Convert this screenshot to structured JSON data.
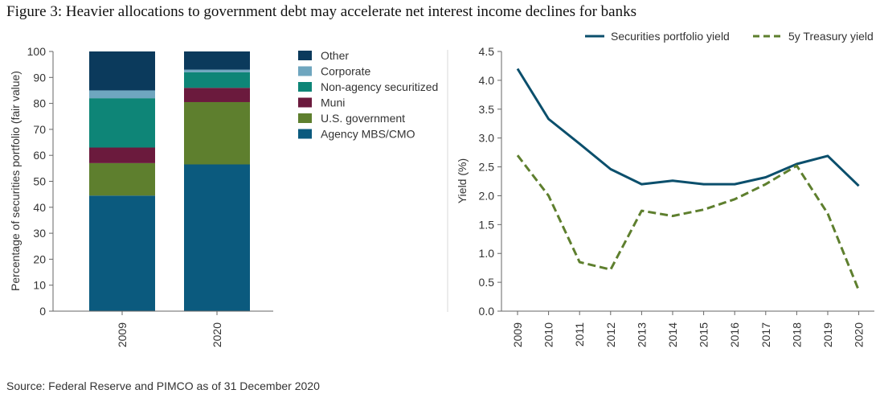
{
  "figure": {
    "title": "Figure 3: Heavier allocations to government debt may accelerate net interest income declines for banks",
    "source": "Source: Federal Reserve and PIMCO as of 31 December 2020"
  },
  "chart_data": [
    {
      "type": "bar",
      "stacked": true,
      "categories": [
        "2009",
        "2020"
      ],
      "ylabel": "Percentage of securities portfolio (fair value)",
      "ylim": [
        0,
        100
      ],
      "yticks": [
        0,
        10,
        20,
        30,
        40,
        50,
        60,
        70,
        80,
        90,
        100
      ],
      "legend_placement": "right",
      "series": [
        {
          "name": "Agency MBS/CMO",
          "color": "#0b5a7e",
          "values": [
            44.5,
            56.5
          ]
        },
        {
          "name": "U.S. government",
          "color": "#5e7f2e",
          "values": [
            12.5,
            24
          ]
        },
        {
          "name": "Muni",
          "color": "#6b1a3d",
          "values": [
            6,
            5.5
          ]
        },
        {
          "name": "Non-agency securitized",
          "color": "#0e8577",
          "values": [
            19,
            6
          ]
        },
        {
          "name": "Corporate",
          "color": "#6fa6bf",
          "values": [
            3,
            1
          ]
        },
        {
          "name": "Other",
          "color": "#0b3a5c",
          "values": [
            15,
            7
          ]
        }
      ]
    },
    {
      "type": "line",
      "x": [
        "2009",
        "2010",
        "2011",
        "2012",
        "2013",
        "2014",
        "2015",
        "2016",
        "2017",
        "2018",
        "2019",
        "2020"
      ],
      "ylabel": "Yield (%)",
      "ylim": [
        0,
        4.5
      ],
      "yticks": [
        "0.0",
        "0.5",
        "1.0",
        "1.5",
        "2.0",
        "2.5",
        "3.0",
        "3.5",
        "4.0",
        "4.5"
      ],
      "legend_placement": "top",
      "grid": false,
      "series": [
        {
          "name": "Securities portfolio yield",
          "color": "#0b4f6c",
          "style": "solid",
          "values": [
            4.2,
            3.33,
            2.9,
            2.46,
            2.2,
            2.26,
            2.2,
            2.2,
            2.32,
            2.55,
            2.69,
            2.17
          ]
        },
        {
          "name": "5y Treasury yield",
          "color": "#5e7f2e",
          "style": "dashed",
          "values": [
            2.7,
            2.0,
            0.85,
            0.72,
            1.74,
            1.65,
            1.76,
            1.94,
            2.2,
            2.52,
            1.69,
            0.36
          ]
        }
      ]
    }
  ]
}
